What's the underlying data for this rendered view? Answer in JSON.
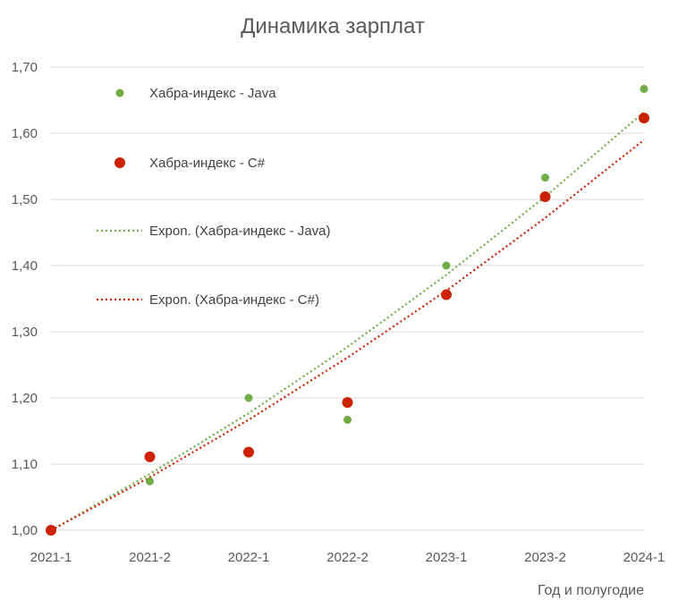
{
  "chart_data": {
    "type": "scatter",
    "title": "Динамика зарплат",
    "xlabel": "Год и полугодие",
    "ylabel": "",
    "categories": [
      "2021-1",
      "2021-2",
      "2022-1",
      "2022-2",
      "2023-1",
      "2023-2",
      "2024-1"
    ],
    "ylim": [
      1.0,
      1.7
    ],
    "yticks": [
      1.0,
      1.1,
      1.2,
      1.3,
      1.4,
      1.5,
      1.6,
      1.7
    ],
    "ytick_labels": [
      "1,00",
      "1,10",
      "1,20",
      "1,30",
      "1,40",
      "1,50",
      "1,60",
      "1,70"
    ],
    "grid": "horizontal",
    "legend_position": "top-left",
    "series": [
      {
        "name": "Хабра-индекс - Java",
        "color": "#70ad47",
        "values": [
          1.0,
          1.074,
          1.2,
          1.167,
          1.4,
          1.533,
          1.667
        ]
      },
      {
        "name": "Хабра-индекс - C#",
        "color": "#cc2200",
        "values": [
          1.0,
          1.111,
          1.118,
          1.193,
          1.356,
          1.504,
          1.623
        ]
      }
    ],
    "trendlines": [
      {
        "name": "Expon. (Хабра-индекс - Java)",
        "color": "#70ad47",
        "style": "dotted",
        "values": [
          1.0,
          1.085,
          1.177,
          1.277,
          1.386,
          1.504,
          1.632
        ]
      },
      {
        "name": "Expon. (Хабра-индекс - C#)",
        "color": "#cc2200",
        "style": "dotted",
        "values": [
          1.0,
          1.08,
          1.167,
          1.261,
          1.362,
          1.472,
          1.59
        ]
      }
    ]
  }
}
